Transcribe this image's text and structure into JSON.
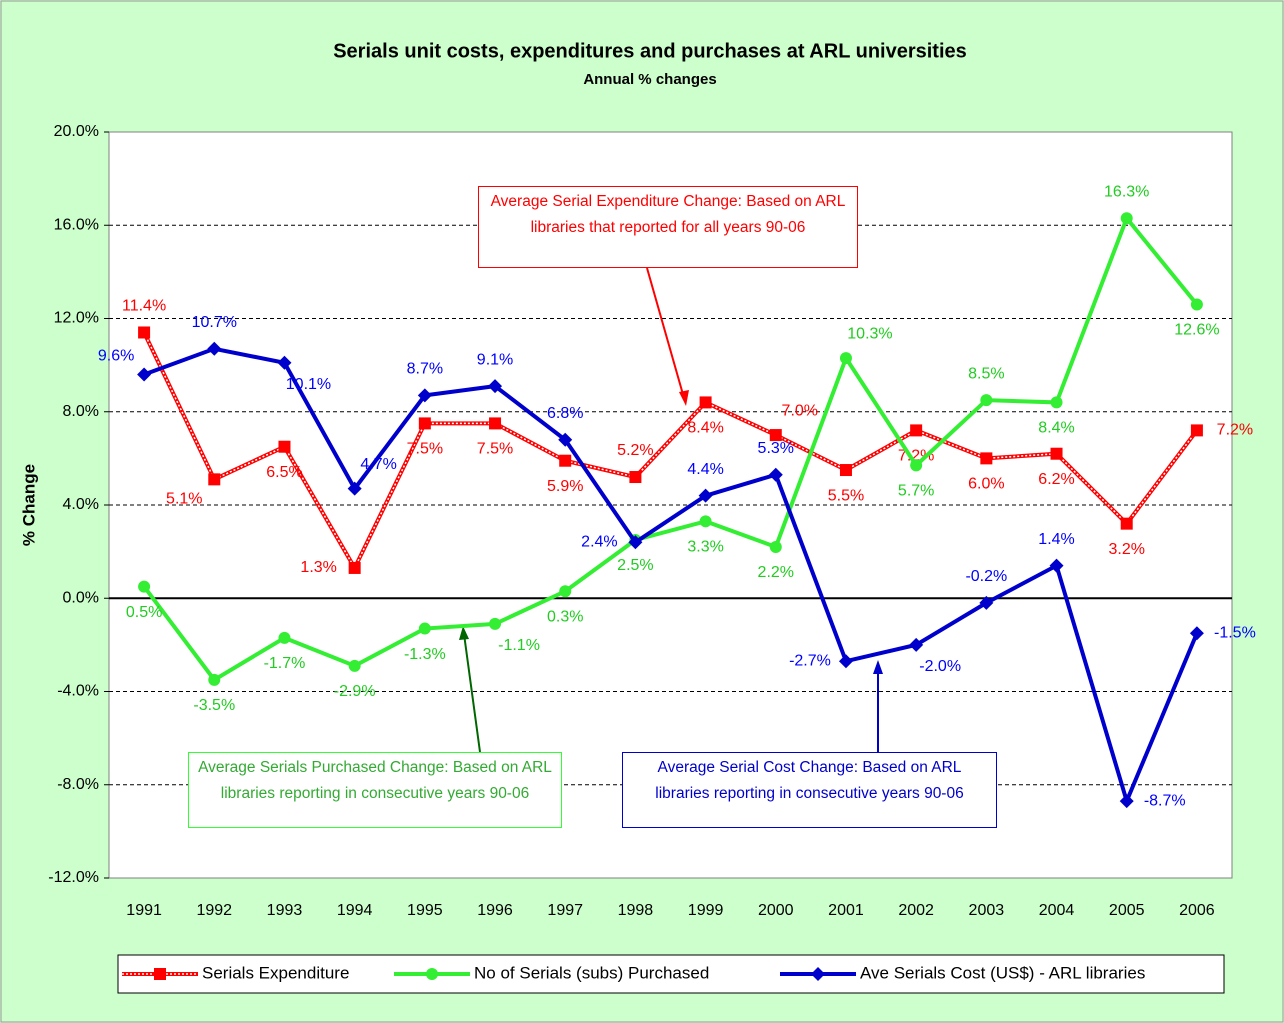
{
  "chart_data": {
    "type": "line",
    "title": "Serials unit costs, expenditures and purchases at ARL universities",
    "subtitle": "Annual % changes",
    "y_label": "% Change",
    "categories": [
      "1991",
      "1992",
      "1993",
      "1994",
      "1995",
      "1996",
      "1997",
      "1998",
      "1999",
      "2000",
      "2001",
      "2002",
      "2003",
      "2004",
      "2005",
      "2006"
    ],
    "ylim": [
      -12,
      20
    ],
    "yticks": [
      {
        "value": -12,
        "label": "-12.0%"
      },
      {
        "value": -8,
        "label": "-8.0%"
      },
      {
        "value": -4,
        "label": "-4.0%"
      },
      {
        "value": 0,
        "label": "0.0%"
      },
      {
        "value": 4,
        "label": "4.0%"
      },
      {
        "value": 8,
        "label": "8.0%"
      },
      {
        "value": 12,
        "label": "12.0%"
      },
      {
        "value": 16,
        "label": "16.0%"
      },
      {
        "value": 20,
        "label": "20.0%"
      }
    ],
    "grid": true,
    "legend": "bottom",
    "series": [
      {
        "name": "Serials Expenditure",
        "color": "#ff0000",
        "marker": "square",
        "values": [
          11.4,
          5.1,
          6.5,
          1.3,
          7.5,
          7.5,
          5.9,
          5.2,
          8.4,
          7.0,
          5.5,
          7.2,
          6.0,
          6.2,
          3.2,
          7.2
        ],
        "value_labels": [
          "11.4%",
          "5.1%",
          "6.5%",
          "1.3%",
          "7.5%",
          "7.5%",
          "5.9%",
          "5.2%",
          "8.4%",
          "7.0%",
          "5.5%",
          "7.2%",
          "6.0%",
          "6.2%",
          "3.2%",
          "7.2%"
        ]
      },
      {
        "name": "No of Serials (subs) Purchased",
        "color": "#00ff00",
        "marker": "circle",
        "values": [
          0.5,
          -3.5,
          -1.7,
          -2.9,
          -1.3,
          -1.1,
          0.3,
          2.5,
          3.3,
          2.2,
          10.3,
          5.7,
          8.5,
          8.4,
          16.3,
          12.6
        ],
        "value_labels": [
          "0.5%",
          "-3.5%",
          "-1.7%",
          "-2.9%",
          "-1.3%",
          "-1.1%",
          "0.3%",
          "2.5%",
          "3.3%",
          "2.2%",
          "10.3%",
          "5.7%",
          "8.5%",
          "8.4%",
          "16.3%",
          "12.6%"
        ]
      },
      {
        "name": "Ave Serials Cost (US$) - ARL libraries",
        "color": "#0000ff",
        "marker": "diamond",
        "values": [
          9.6,
          10.7,
          10.1,
          4.7,
          8.7,
          9.1,
          6.8,
          2.4,
          4.4,
          5.3,
          -2.7,
          -2.0,
          -0.2,
          1.4,
          -8.7,
          -1.5
        ],
        "value_labels": [
          "9.6%",
          "10.7%",
          "10.1%",
          "4.7%",
          "8.7%",
          "9.1%",
          "6.8%",
          "2.4%",
          "4.4%",
          "5.3%",
          "-2.7%",
          "-2.0%",
          "-0.2%",
          "1.4%",
          "-8.7%",
          "-1.5%"
        ]
      }
    ],
    "annotations": [
      "Average Serial Expenditure Change: Based on ARL libraries that reported for all years 90-06",
      "Average Serials Purchased Change: Based on ARL libraries reporting in consecutive years 90-06",
      "Average Serial Cost Change: Based on ARL libraries reporting in consecutive years 90-06"
    ]
  }
}
